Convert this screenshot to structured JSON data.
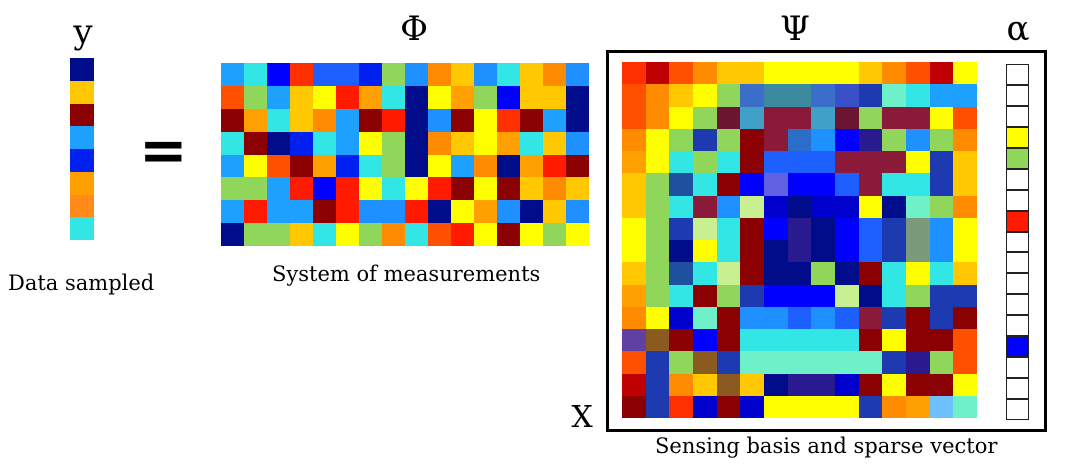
{
  "labels": {
    "y_symbol": "y",
    "phi_symbol": "Φ",
    "psi_symbol": "Ψ",
    "alpha_symbol": "α",
    "x_symbol": "X",
    "equals": "="
  },
  "captions": {
    "data_sampled": "Data sampled",
    "system_of_measurements": "System of measurements",
    "sensing_basis": "Sensing basis and sparse vector"
  },
  "colors": {
    "dark_blue": "#00008b",
    "blue": "#0000ff",
    "light_blue": "#1e90ff",
    "cyan": "#00e5ff",
    "green": "#8fd65a",
    "yellow": "#ffff00",
    "orange": "#ffa500",
    "red": "#ff1a00",
    "dark_red": "#8b0000",
    "white": "#ffffff"
  },
  "y_vector": [
    "#000c8a",
    "#ffc800",
    "#8b0000",
    "#1ea0ff",
    "#0020f0",
    "#ffa000",
    "#ff8a1a",
    "#33e6e6"
  ],
  "phi_matrix": [
    [
      "#1ea0ff",
      "#33e6e6",
      "#0000ff",
      "#ff3000",
      "#1e60ff",
      "#1e60ff",
      "#0020f0",
      "#8fd65a",
      "#1e90ff",
      "#ff8c00",
      "#ffc800",
      "#1e90ff",
      "#33e6e6",
      "#ffc800",
      "#ff8c00",
      "#1e90ff"
    ],
    [
      "#ff5000",
      "#8fd65a",
      "#1ea0ff",
      "#ffc800",
      "#ffff00",
      "#ff1a00",
      "#ffa000",
      "#33e6e6",
      "#000c8a",
      "#ffff00",
      "#ffa000",
      "#8fd65a",
      "#0000ff",
      "#ffc800",
      "#ffc800",
      "#000c8a"
    ],
    [
      "#8b0000",
      "#ffa000",
      "#33e6e6",
      "#ffc800",
      "#ff8c00",
      "#1ea0ff",
      "#8b0000",
      "#ff1a00",
      "#000c8a",
      "#1e90ff",
      "#8b0000",
      "#ffff00",
      "#ff3000",
      "#8b0000",
      "#1ea0ff",
      "#000c8a"
    ],
    [
      "#33e6e6",
      "#8b0000",
      "#000c8a",
      "#0020f0",
      "#33e6e6",
      "#1ea0ff",
      "#ffff00",
      "#8fd65a",
      "#000c8a",
      "#ff8c00",
      "#ffc800",
      "#ffff00",
      "#ffa000",
      "#33e6e6",
      "#ffc800",
      "#1e90ff"
    ],
    [
      "#1ea0ff",
      "#ffff00",
      "#ff5000",
      "#8b0000",
      "#ffa000",
      "#0020f0",
      "#33e6e6",
      "#8fd65a",
      "#000c8a",
      "#ffff00",
      "#1ea0ff",
      "#ff8c00",
      "#000c8a",
      "#ffa000",
      "#ff1a00",
      "#8b0000"
    ],
    [
      "#8fd65a",
      "#8fd65a",
      "#1ea0ff",
      "#ff1a00",
      "#0000ff",
      "#ff1a00",
      "#ffff00",
      "#33e6e6",
      "#ffff00",
      "#ff1a00",
      "#8b0000",
      "#ffff00",
      "#8b0000",
      "#ffc800",
      "#ff8c00",
      "#ffc800"
    ],
    [
      "#1ea0ff",
      "#ff1a00",
      "#1ea0ff",
      "#1ea0ff",
      "#8b0000",
      "#ff1a00",
      "#1e90ff",
      "#1e90ff",
      "#ff1a00",
      "#000c8a",
      "#ffff00",
      "#ffa000",
      "#1e90ff",
      "#000c8a",
      "#ffc800",
      "#1e90ff"
    ],
    [
      "#000c8a",
      "#8fd65a",
      "#8fd65a",
      "#ffc800",
      "#33e6e6",
      "#ffff00",
      "#8fd65a",
      "#ff8c00",
      "#33e6e6",
      "#ff5000",
      "#ff1a00",
      "#ffff00",
      "#8b0000",
      "#ffff00",
      "#8fd65a",
      "#ffff00"
    ]
  ],
  "psi_matrix": [
    [
      "#ff3000",
      "#c00000",
      "#ff5000",
      "#ff8c00",
      "#ffc800",
      "#ffc800",
      "#ffff00",
      "#ffff00",
      "#ffff00",
      "#ffff00",
      "#ffc800",
      "#ff8c00",
      "#ff5000",
      "#c00000",
      "#ffff00"
    ],
    [
      "#ff5000",
      "#ff8c00",
      "#ffc800",
      "#ffff00",
      "#8fd65a",
      "#3a6ec8",
      "#3a8aa0",
      "#3a8aa0",
      "#3a6ec8",
      "#3a50c8",
      "#1e3ab0",
      "#6ef0c8",
      "#33e6e6",
      "#1ea0ff",
      "#1ea0ff"
    ],
    [
      "#ff5000",
      "#ff8c00",
      "#ffff00",
      "#8fd65a",
      "#6b1530",
      "#40a0c8",
      "#8b1a3a",
      "#8b1a3a",
      "#40a0c8",
      "#6b1530",
      "#8fd65a",
      "#8b1a3a",
      "#8b1a3a",
      "#ffff00",
      "#ff5000"
    ],
    [
      "#ff8c00",
      "#ffff00",
      "#8fd65a",
      "#1e3ab0",
      "#8fd65a",
      "#8b0000",
      "#8b1a3a",
      "#2a6ec8",
      "#1e90ff",
      "#0000ff",
      "#2a1a90",
      "#8fd65a",
      "#1e90ff",
      "#8fd65a",
      "#ff8c00"
    ],
    [
      "#ffa000",
      "#ffff00",
      "#33e6e6",
      "#8fd65a",
      "#33e6e6",
      "#8b0000",
      "#1e60ff",
      "#1e60ff",
      "#1e60ff",
      "#8b1a3a",
      "#8b1a3a",
      "#8b1a3a",
      "#ffff00",
      "#1e3ab0",
      "#ffc800"
    ],
    [
      "#ffc800",
      "#8fd65a",
      "#1e50a0",
      "#33e6e6",
      "#8b0000",
      "#0000ff",
      "#6060e0",
      "#0000ff",
      "#0000ff",
      "#1e60ff",
      "#8b1a3a",
      "#33e6e6",
      "#33e6e6",
      "#1e3ab0",
      "#ffc800"
    ],
    [
      "#ffc800",
      "#8fd65a",
      "#33e6e6",
      "#8b1a3a",
      "#1e90ff",
      "#c8f090",
      "#0000cc",
      "#000c8a",
      "#0000cc",
      "#0000cc",
      "#ffff00",
      "#000c8a",
      "#6ef0c8",
      "#8fd65a",
      "#ff8c00"
    ],
    [
      "#ffff00",
      "#8fd65a",
      "#1e3ab0",
      "#c8f090",
      "#33e6e6",
      "#8b0000",
      "#0000ff",
      "#2a1a90",
      "#000c8a",
      "#0000ff",
      "#1e60ff",
      "#1e3ab0",
      "#7a9a7a",
      "#1e90ff",
      "#ffff00"
    ],
    [
      "#ffff00",
      "#8fd65a",
      "#000c8a",
      "#ffff00",
      "#33e6e6",
      "#8b0000",
      "#000c8a",
      "#2a1a90",
      "#000c8a",
      "#0000ff",
      "#1e60ff",
      "#1e3ab0",
      "#7a9a7a",
      "#1e90ff",
      "#ffff00"
    ],
    [
      "#ffc800",
      "#8fd65a",
      "#1e50a0",
      "#33e6e6",
      "#c8f090",
      "#8b0000",
      "#000c8a",
      "#000c8a",
      "#8fd65a",
      "#000c8a",
      "#8b0000",
      "#33e6e6",
      "#ffff00",
      "#33e6e6",
      "#ffc800"
    ],
    [
      "#ffa000",
      "#8fd65a",
      "#33e6e6",
      "#8b0000",
      "#8fd65a",
      "#1e3ab0",
      "#0000ff",
      "#0000ff",
      "#0000ff",
      "#c8f090",
      "#000c8a",
      "#33e6e6",
      "#8fd65a",
      "#1e3ab0",
      "#1e3ab0"
    ],
    [
      "#ff8c00",
      "#ffff00",
      "#0000cc",
      "#6ef0c8",
      "#8b0000",
      "#1e90ff",
      "#1e90ff",
      "#1e60ff",
      "#1e90ff",
      "#1e60ff",
      "#8b1a3a",
      "#1e3ab0",
      "#8b0000",
      "#1e3ab0",
      "#8b0000"
    ],
    [
      "#6040a0",
      "#8a5a20",
      "#8b0000",
      "#0000ff",
      "#8b0000",
      "#33e6e6",
      "#33e6e6",
      "#33e6e6",
      "#33e6e6",
      "#33e6e6",
      "#8b0000",
      "#ffff00",
      "#8b0000",
      "#8b0000",
      "#ff5000"
    ],
    [
      "#ff5000",
      "#1e3ab0",
      "#8fd65a",
      "#8a5a20",
      "#1e3ab0",
      "#6ef0c8",
      "#6ef0c8",
      "#6ef0c8",
      "#6ef0c8",
      "#6ef0c8",
      "#6ef0c8",
      "#1e3ab0",
      "#2a1a90",
      "#8fd65a",
      "#ff5000"
    ],
    [
      "#c00000",
      "#1e3ab0",
      "#ff8c00",
      "#ffc800",
      "#8a5a20",
      "#ffc800",
      "#000c8a",
      "#2a1a90",
      "#2a1a90",
      "#0000cc",
      "#8b0000",
      "#ffff00",
      "#8b0000",
      "#8b0000",
      "#ffff00"
    ],
    [
      "#8b0000",
      "#1e3ab0",
      "#ff3000",
      "#0000cc",
      "#8b0000",
      "#0000cc",
      "#ffff00",
      "#ffff00",
      "#ffff00",
      "#ffff00",
      "#1e3ab0",
      "#ff8c00",
      "#ffa000",
      "#6ec0ff",
      "#6ef0c8"
    ]
  ],
  "alpha_vector": [
    "#ffffff",
    "#ffffff",
    "#ffffff",
    "#ffff00",
    "#8fd65a",
    "#ffffff",
    "#ffffff",
    "#ff1a00",
    "#ffffff",
    "#ffffff",
    "#ffffff",
    "#ffffff",
    "#ffffff",
    "#0000ff",
    "#ffffff",
    "#ffffff",
    "#ffffff"
  ]
}
